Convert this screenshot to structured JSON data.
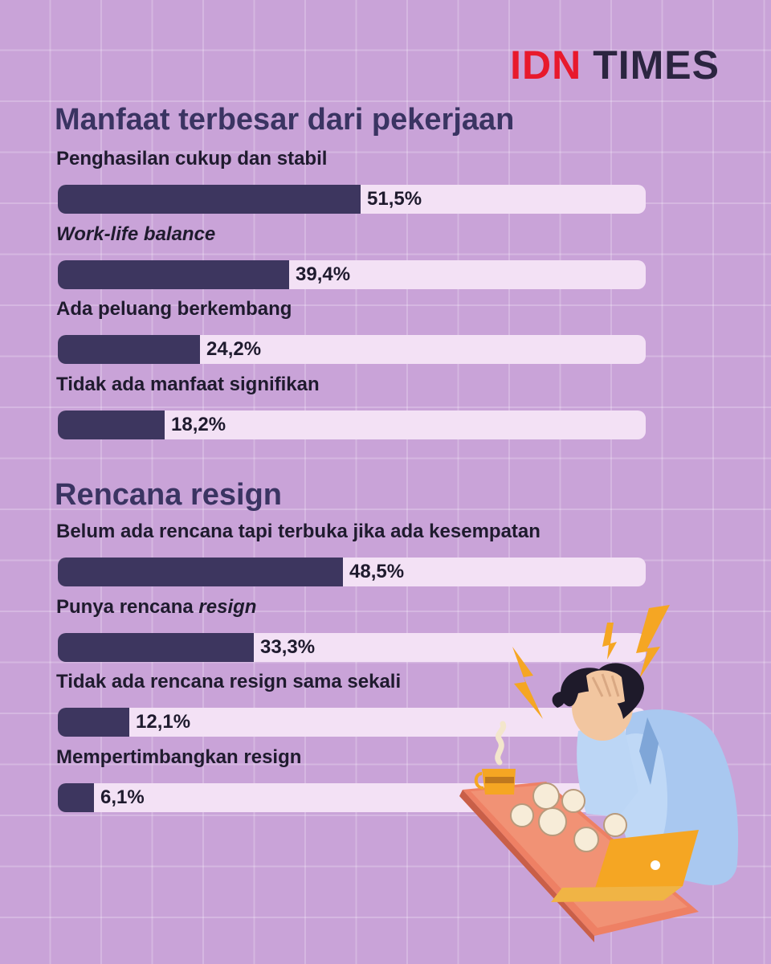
{
  "brand": {
    "logo_part1": "IDN",
    "logo_part2": "TIMES"
  },
  "chart_data": [
    {
      "type": "bar",
      "orientation": "horizontal",
      "title": "Manfaat terbesar dari pekerjaan",
      "xlim": [
        0,
        100
      ],
      "categories": [
        "Penghasilan cukup dan stabil",
        "Work-life balance",
        "Ada peluang berkembang",
        "Tidak ada manfaat signifikan"
      ],
      "values": [
        51.5,
        39.4,
        24.2,
        18.2
      ],
      "value_labels": [
        "51,5%",
        "39,4%",
        "24,2%",
        "18,2%"
      ]
    },
    {
      "type": "bar",
      "orientation": "horizontal",
      "title": "Rencana resign",
      "xlim": [
        0,
        100
      ],
      "categories": [
        "Belum ada rencana tapi terbuka jika ada kesempatan",
        "Punya rencana resign",
        "Tidak ada rencana resign sama sekali",
        "Mempertimbangkan resign"
      ],
      "values": [
        48.5,
        33.3,
        12.1,
        6.1
      ],
      "value_labels": [
        "48,5%",
        "33,3%",
        "12,1%",
        "6,1%"
      ]
    }
  ],
  "colors": {
    "background": "#c9a3d8",
    "bar_fill": "#3d365f",
    "bar_track": "#f3e1f5",
    "title": "#3a3462",
    "brand_red": "#e8192c"
  },
  "illustration": {
    "icon": "stressed-worker-at-desk-icon"
  }
}
